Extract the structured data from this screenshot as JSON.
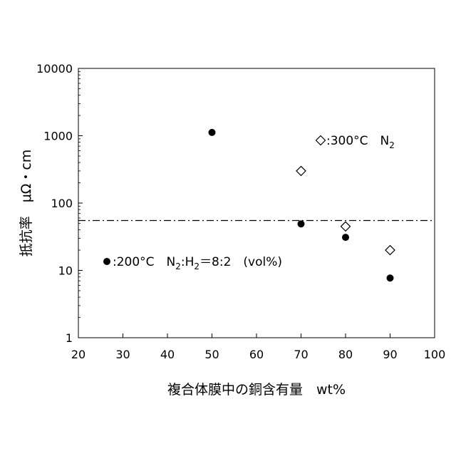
{
  "chart_data": {
    "type": "scatter",
    "xlabel": "複合体膜中の銅含有量　wt%",
    "ylabel": "抵抗率　μΩ・cm",
    "xlim": [
      20,
      100
    ],
    "ylim": [
      1,
      10000
    ],
    "yscale": "log",
    "x_ticks": [
      20,
      30,
      40,
      50,
      60,
      70,
      80,
      90,
      100
    ],
    "y_ticks": [
      1,
      10,
      100,
      1000,
      10000
    ],
    "x_tick_labels": [
      "20",
      "30",
      "40",
      "50",
      "60",
      "70",
      "80",
      "90",
      "100"
    ],
    "y_tick_labels": [
      "1",
      "10",
      "100",
      "1000",
      "10000"
    ],
    "grid": false,
    "reference_line": {
      "y": 55,
      "style": "dash-dot"
    },
    "series": [
      {
        "marker": "filled-circle",
        "color": "#000000",
        "legend": {
          "prefix": ":200°C　N",
          "sub1": "2",
          "mid": ":H",
          "sub2": "2",
          "suffix": "＝8:2　(vol%)"
        },
        "x": [
          50,
          70,
          80,
          90
        ],
        "y": [
          1120,
          49,
          31,
          7.7
        ]
      },
      {
        "marker": "open-diamond",
        "color": "#000000",
        "legend": {
          "prefix": ":300°C　N",
          "sub1": "2"
        },
        "x": [
          70,
          80,
          90
        ],
        "y": [
          300,
          45,
          20
        ]
      }
    ]
  }
}
